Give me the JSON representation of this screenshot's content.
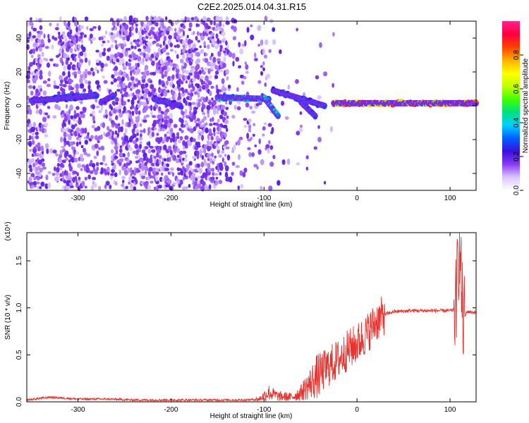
{
  "title": "C2E2.2025.014.04.31.R15",
  "chart_data": [
    {
      "type": "heatmap",
      "xlabel": "Height of straight line (km)",
      "ylabel": "Frequency (Hz)",
      "xlim": [
        -355,
        128
      ],
      "ylim": [
        -50,
        50
      ],
      "xticks": [
        -300,
        -200,
        -100,
        0,
        100
      ],
      "yticks": [
        -40,
        -20,
        0,
        20,
        40
      ],
      "colorbar": {
        "label": "Normalized spectral amplitude",
        "range": [
          0,
          1
        ],
        "ticks": [
          "0.0",
          "0.2",
          "0.4",
          "0.6",
          "0.8"
        ],
        "colors": [
          "#ffffff",
          "#d9c6ff",
          "#8a3cf0",
          "#3b0fe0",
          "#0060ff",
          "#00d0ff",
          "#00e080",
          "#40ff00",
          "#c0ff00",
          "#ffff00",
          "#ffb000",
          "#ff4000",
          "#ff0040",
          "#ff2090"
        ]
      },
      "ridge_segments": [
        {
          "x": [
            -350,
            -280
          ],
          "y": [
            3,
            6
          ],
          "amplitude": 0.35
        },
        {
          "x": [
            -275,
            -262
          ],
          "y": [
            2,
            6
          ],
          "amplitude": 0.3
        },
        {
          "x": [
            -218,
            -190
          ],
          "y": [
            4,
            0
          ],
          "amplitude": 0.35
        },
        {
          "x": [
            -150,
            -95
          ],
          "y": [
            5,
            4
          ],
          "amplitude": 0.45
        },
        {
          "x": [
            -100,
            -85
          ],
          "y": [
            5,
            -6
          ],
          "amplitude": 0.5
        },
        {
          "x": [
            -90,
            -35
          ],
          "y": [
            9,
            0
          ],
          "amplitude": 0.35
        },
        {
          "x": [
            -60,
            -45
          ],
          "y": [
            2,
            -6
          ],
          "amplitude": 0.3
        },
        {
          "x": [
            -25,
            128
          ],
          "y": [
            1.5,
            1.5
          ],
          "amplitude": 0.95
        }
      ]
    },
    {
      "type": "line",
      "xlabel": "Height of straight line (km)",
      "ylabel": "SNR (10 * v/v)",
      "y_multiplier": "(x10⁴)",
      "color": "#e8302c",
      "xlim": [
        -355,
        128
      ],
      "ylim": [
        0,
        1.8
      ],
      "xticks": [
        -300,
        -200,
        -100,
        0,
        100
      ],
      "yticks": [
        "0.0",
        "0.5",
        "1.0",
        "1.5"
      ],
      "series": [
        {
          "x": [
            -355,
            -330,
            -300,
            -270,
            -240,
            -200,
            -160,
            -120,
            -105,
            -95,
            -85,
            -70,
            -60,
            -50,
            -40,
            -30,
            -20,
            -10,
            0,
            10,
            20,
            30,
            40,
            60,
            80,
            100,
            106,
            110,
            114,
            118,
            128
          ],
          "y": [
            0.02,
            0.05,
            0.03,
            0.03,
            0.02,
            0.02,
            0.02,
            0.02,
            0.03,
            0.1,
            0.06,
            0.05,
            0.1,
            0.2,
            0.3,
            0.38,
            0.45,
            0.55,
            0.62,
            0.72,
            0.85,
            0.93,
            0.96,
            0.97,
            0.97,
            0.97,
            0.98,
            1.7,
            0.85,
            0.96,
            0.95
          ]
        }
      ]
    }
  ]
}
